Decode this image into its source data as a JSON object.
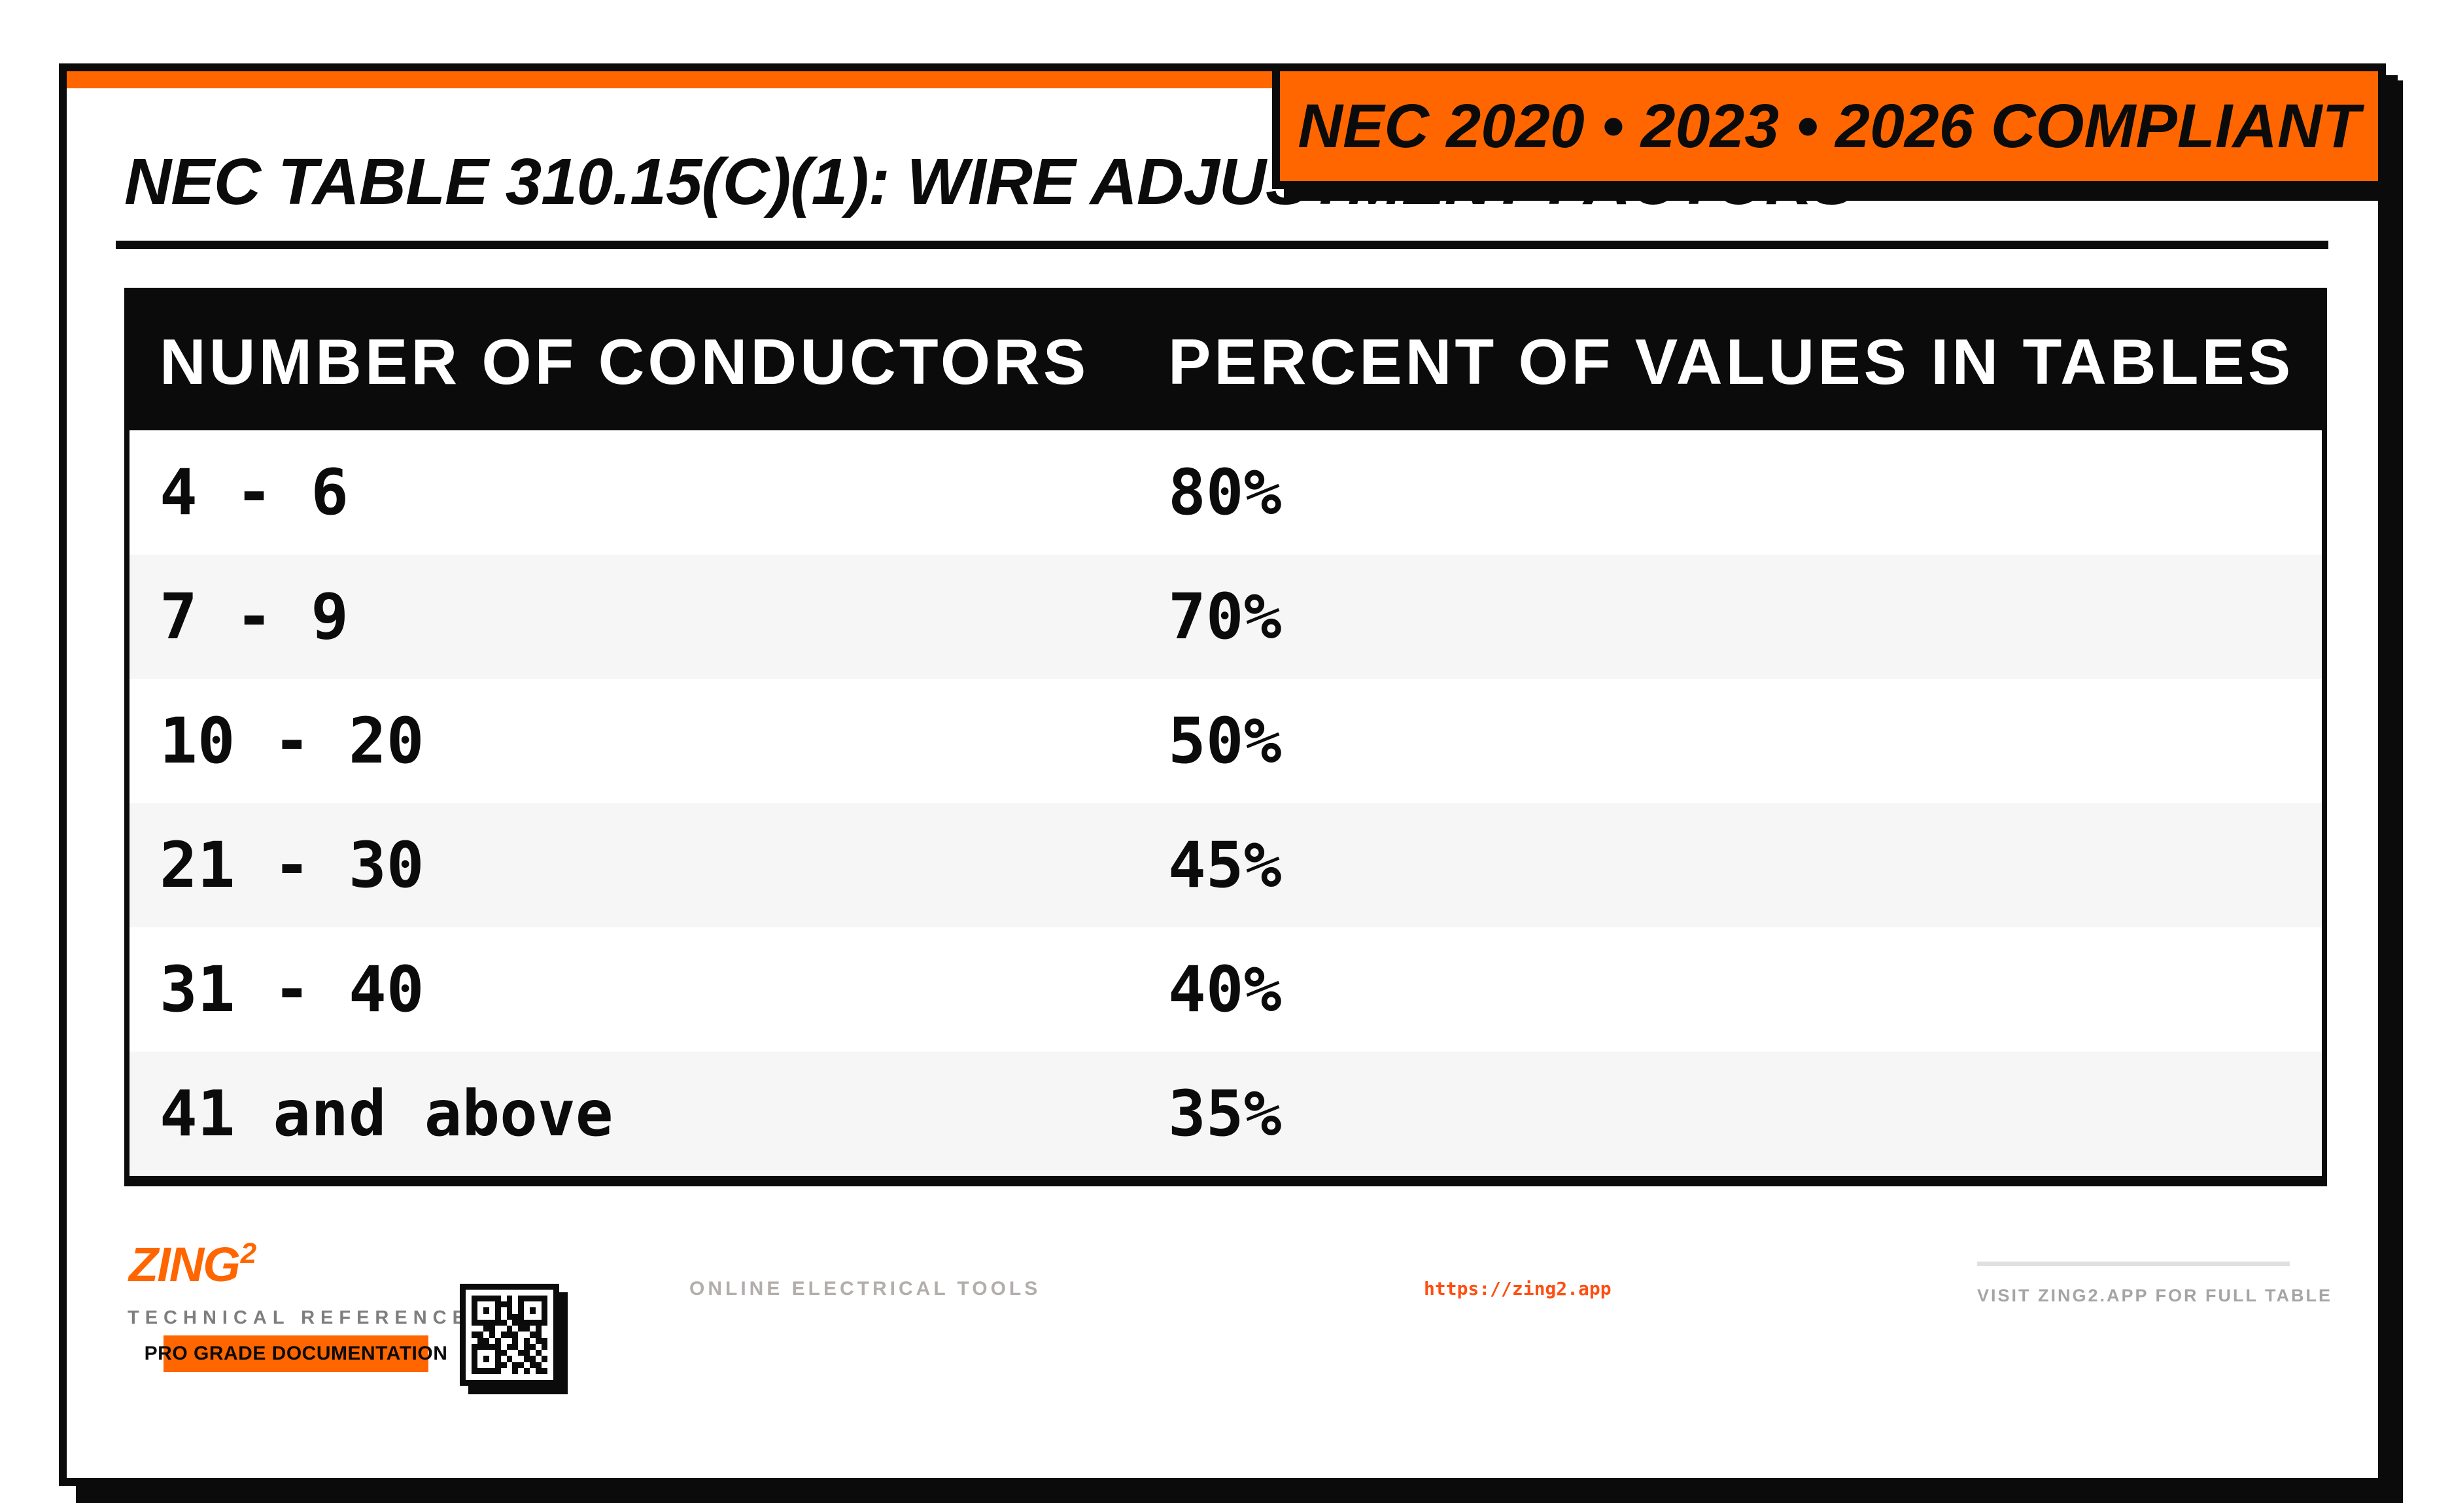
{
  "colors": {
    "accent": "#FF6600",
    "link": "#FF4E11",
    "ink": "#0B0B0B",
    "zebra": "#F6F6F6",
    "muted": "#A5A5A5",
    "muted-warm": "#B3AEAC",
    "tech-gray": "#7E7E7E",
    "divider": "#E0E0E0"
  },
  "header": {
    "title": "NEC TABLE 310.15(C)(1): WIRE ADJUSTMENT FACTORS",
    "badge_label": "NEC 2020 • 2023 • 2026 COMPLIANT"
  },
  "table": {
    "columns": [
      "NUMBER OF CONDUCTORS",
      "PERCENT OF VALUES IN TABLES"
    ],
    "rows": [
      [
        "4 - 6",
        "80%"
      ],
      [
        "7 - 9",
        "70%"
      ],
      [
        "10 - 20",
        "50%"
      ],
      [
        "21 - 30",
        "45%"
      ],
      [
        "31 - 40",
        "40%"
      ],
      [
        "41 and above",
        "35%"
      ]
    ]
  },
  "chart_data": {
    "type": "table",
    "title": "NEC TABLE 310.15(C)(1): WIRE ADJUSTMENT FACTORS",
    "columns": [
      "NUMBER OF CONDUCTORS",
      "PERCENT OF VALUES IN TABLES"
    ],
    "categories": [
      "4 - 6",
      "7 - 9",
      "10 - 20",
      "21 - 30",
      "31 - 40",
      "41 and above"
    ],
    "values_percent": [
      80,
      70,
      50,
      45,
      40,
      35
    ]
  },
  "footer": {
    "logo_text": "ZING",
    "logo_sup": "2",
    "tagline": "TECHNICAL REFERENCE DATA",
    "pro_badge": "PRO GRADE DOCUMENTATION",
    "online_text": "ONLINE ELECTRICAL TOOLS",
    "url": "https://zing2.app",
    "visit_text": "VISIT ZING2.APP FOR FULL TABLE",
    "qr": {
      "matrix": [
        "1111101011111",
        "1000111010001",
        "1010101010101",
        "1000101110001",
        "1111110111111",
        "0011001011010",
        "1101011100110",
        "0110100101011",
        "1111101101101",
        "1000110011010",
        "1010101001101",
        "1000110110110",
        "1111100101011"
      ]
    }
  }
}
